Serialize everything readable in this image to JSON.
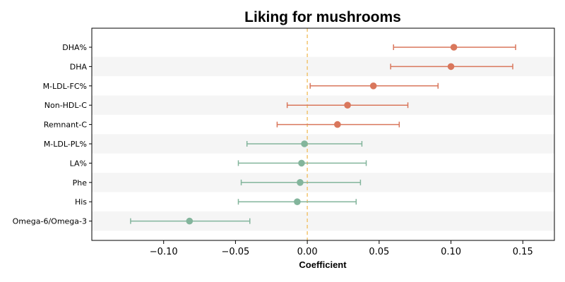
{
  "chart_data": {
    "type": "forest",
    "title": "Liking for mushrooms",
    "xlabel": "Coefficient",
    "ylabel": "",
    "xlim": [
      -0.15,
      0.172
    ],
    "xticks": [
      -0.1,
      -0.05,
      0.0,
      0.05,
      0.1,
      0.15
    ],
    "xtick_labels": [
      "−0.10",
      "−0.05",
      "0.00",
      "0.05",
      "0.10",
      "0.15"
    ],
    "reference_line": 0.0,
    "alternating_row_shading": true,
    "colors": {
      "positive": "#d9775c",
      "negative": "#83b59c",
      "reference": "#f2c46f",
      "band": "#f5f5f5"
    },
    "rows": [
      {
        "label": "DHA%",
        "estimate": 0.102,
        "lower": 0.06,
        "upper": 0.145
      },
      {
        "label": "DHA",
        "estimate": 0.1,
        "lower": 0.058,
        "upper": 0.143
      },
      {
        "label": "M-LDL-FC%",
        "estimate": 0.046,
        "lower": 0.002,
        "upper": 0.091
      },
      {
        "label": "Non-HDL-C",
        "estimate": 0.028,
        "lower": -0.014,
        "upper": 0.07
      },
      {
        "label": "Remnant-C",
        "estimate": 0.021,
        "lower": -0.021,
        "upper": 0.064
      },
      {
        "label": "M-LDL-PL%",
        "estimate": -0.002,
        "lower": -0.042,
        "upper": 0.038
      },
      {
        "label": "LA%",
        "estimate": -0.004,
        "lower": -0.048,
        "upper": 0.041
      },
      {
        "label": "Phe",
        "estimate": -0.005,
        "lower": -0.046,
        "upper": 0.037
      },
      {
        "label": "His",
        "estimate": -0.007,
        "lower": -0.048,
        "upper": 0.034
      },
      {
        "label": "Omega-6/Omega-3",
        "estimate": -0.082,
        "lower": -0.123,
        "upper": -0.04
      }
    ]
  }
}
